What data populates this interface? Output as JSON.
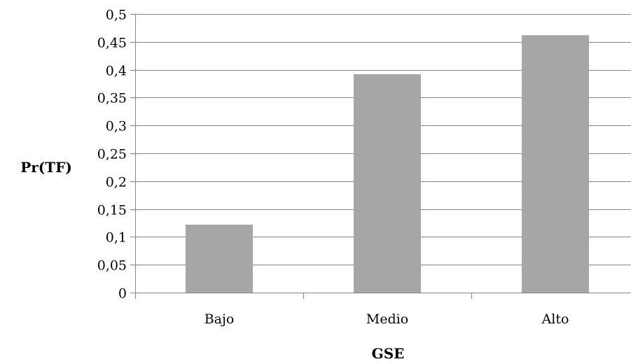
{
  "chart_data": {
    "type": "bar",
    "categories": [
      "Bajo",
      "Medio",
      "Alto"
    ],
    "values": [
      0.122,
      0.392,
      0.462
    ],
    "xlabel": "GSE",
    "ylabel": "Pr(TF)",
    "ylim": [
      0,
      0.5
    ],
    "yticks": [
      "0",
      "0,05",
      "0,1",
      "0,15",
      "0,2",
      "0,25",
      "0,3",
      "0,35",
      "0,4",
      "0,45",
      "0,5"
    ],
    "grid": true,
    "legend": "none",
    "bar_color": "#a6a6a6",
    "grid_color": "#868686"
  }
}
